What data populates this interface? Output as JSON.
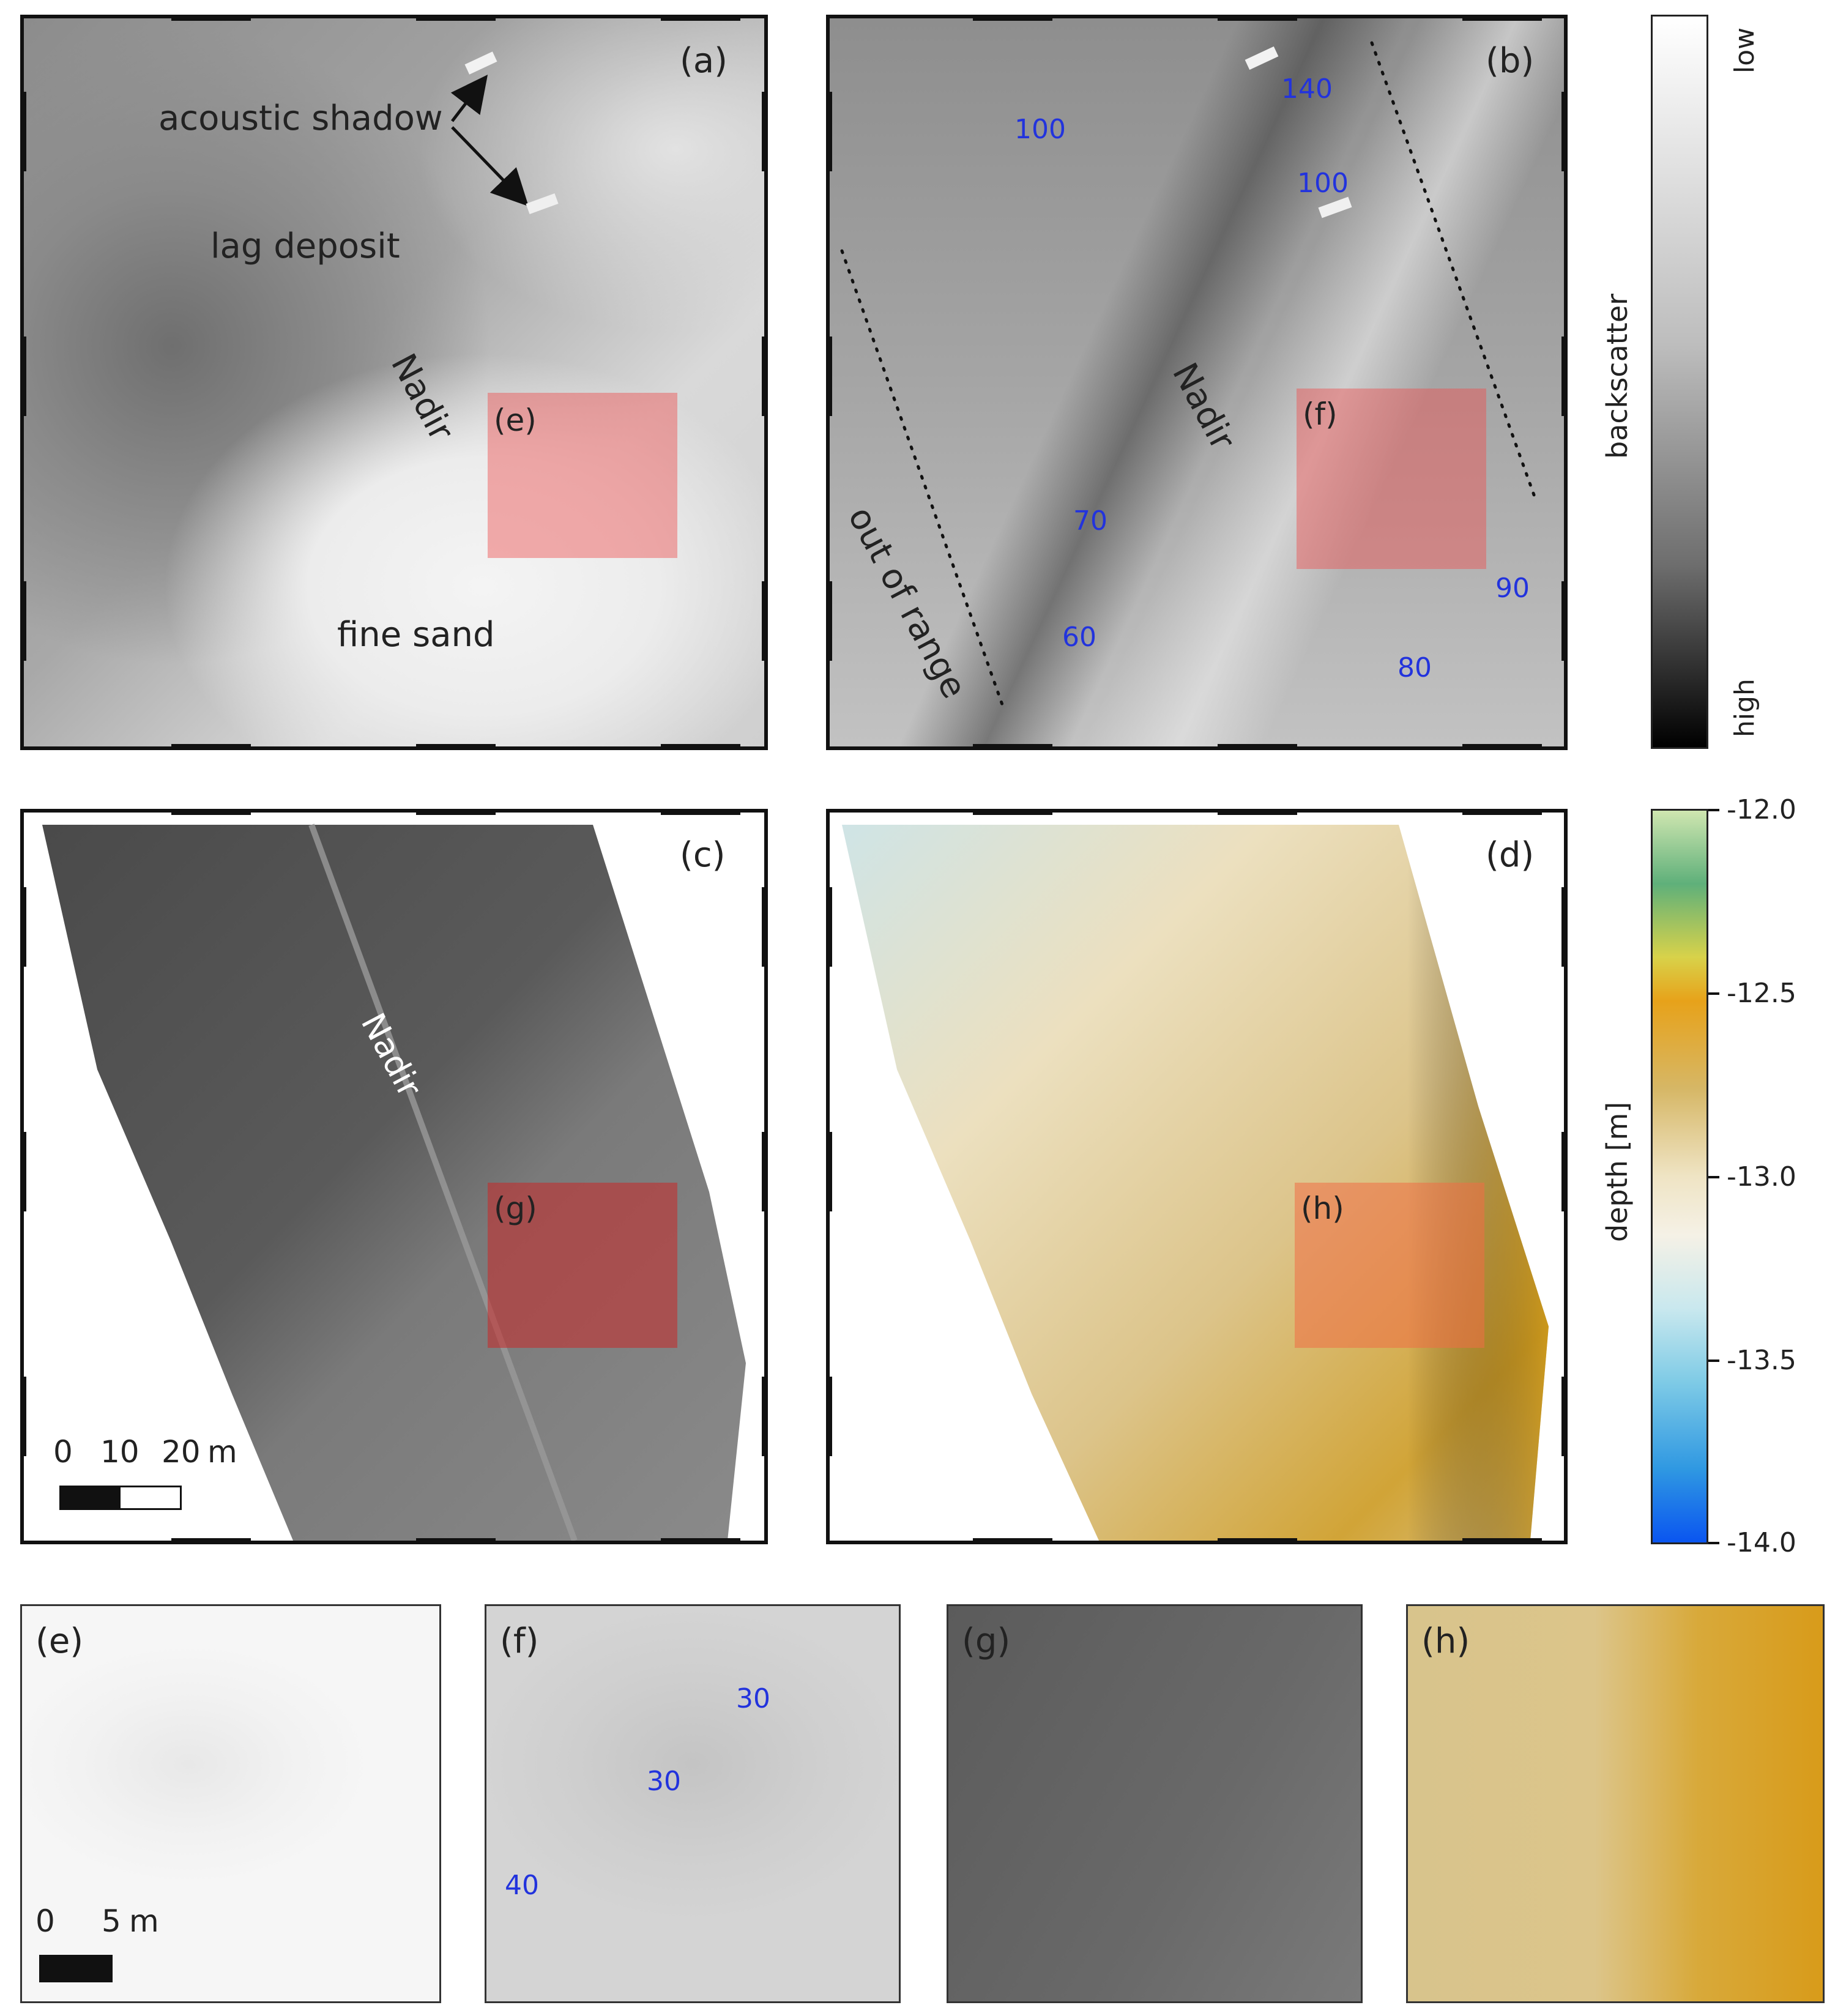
{
  "panels": {
    "a": {
      "tag": "(a)",
      "acoustic_shadow": "acoustic shadow",
      "lag_deposit": "lag deposit",
      "nadir": "Nadir",
      "fine_sand": "fine sand",
      "inset": "(e)"
    },
    "b": {
      "tag": "(b)",
      "nadir": "Nadir",
      "out_of_range": "out of range",
      "inset": "(f)",
      "numbers": [
        "140",
        "100",
        "100",
        "70",
        "60",
        "80",
        "90"
      ]
    },
    "c": {
      "tag": "(c)",
      "nadir": "Nadir",
      "inset": "(g)",
      "scale": {
        "tick0": "0",
        "tick1": "10",
        "tick2": "20",
        "unit": "m"
      }
    },
    "d": {
      "tag": "(d)",
      "inset": "(h)"
    },
    "e": {
      "tag": "(e)",
      "scale": {
        "tick0": "0",
        "tick1": "5",
        "unit": "m"
      }
    },
    "f": {
      "tag": "(f)",
      "numbers": [
        "30",
        "30",
        "40"
      ]
    },
    "g": {
      "tag": "(g)"
    },
    "h": {
      "tag": "(h)"
    }
  },
  "colorbars": {
    "backscatter": {
      "label": "backscatter",
      "top": "low",
      "bottom": "high"
    },
    "depth": {
      "label": "depth [m]",
      "ticks": [
        "-12.0",
        "-12.5",
        "-13.0",
        "-13.5",
        "-14.0"
      ]
    }
  }
}
